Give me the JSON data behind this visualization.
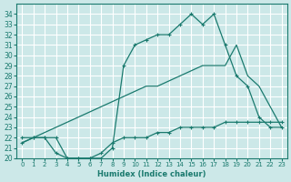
{
  "xlabel": "Humidex (Indice chaleur)",
  "xlim": [
    -0.5,
    23.5
  ],
  "ylim": [
    20,
    35
  ],
  "yticks": [
    20,
    21,
    22,
    23,
    24,
    25,
    26,
    27,
    28,
    29,
    30,
    31,
    32,
    33,
    34
  ],
  "xticks": [
    0,
    1,
    2,
    3,
    4,
    5,
    6,
    7,
    8,
    9,
    10,
    11,
    12,
    13,
    14,
    15,
    16,
    17,
    18,
    19,
    20,
    21,
    22,
    23
  ],
  "bg_color": "#cce8e8",
  "grid_color": "#ffffff",
  "line_color": "#1a7a6e",
  "curve1_x": [
    0,
    1,
    2,
    3,
    4,
    5,
    6,
    7,
    8,
    9,
    10,
    11,
    12,
    13,
    14,
    15,
    16,
    17,
    18,
    19,
    20,
    21,
    22,
    23
  ],
  "curve1_y": [
    21.5,
    22,
    22,
    22,
    20,
    20,
    20,
    20,
    21,
    29,
    31,
    31.5,
    32,
    32,
    33,
    34,
    33,
    34,
    31,
    28,
    27,
    24,
    23,
    23
  ],
  "curve2_x": [
    0,
    1,
    2,
    3,
    4,
    5,
    6,
    7,
    8,
    9,
    10,
    11,
    12,
    13,
    14,
    15,
    16,
    17,
    18,
    19,
    20,
    21,
    22,
    23
  ],
  "curve2_y": [
    21.5,
    22,
    22.5,
    23,
    23.5,
    24,
    24.5,
    25,
    25.5,
    26,
    26.5,
    27,
    27,
    27.5,
    28,
    28.5,
    29,
    29,
    29,
    31,
    28,
    27,
    25,
    23
  ],
  "curve3_x": [
    0,
    1,
    2,
    3,
    4,
    5,
    6,
    7,
    8,
    9,
    10,
    11,
    12,
    13,
    14,
    15,
    16,
    17,
    18,
    19,
    20,
    21,
    22,
    23
  ],
  "curve3_y": [
    22,
    22,
    22,
    20.5,
    20,
    20,
    20,
    20.5,
    21.5,
    22,
    22,
    22,
    22.5,
    22.5,
    23,
    23,
    23,
    23,
    23.5,
    23.5,
    23.5,
    23.5,
    23.5,
    23.5
  ]
}
